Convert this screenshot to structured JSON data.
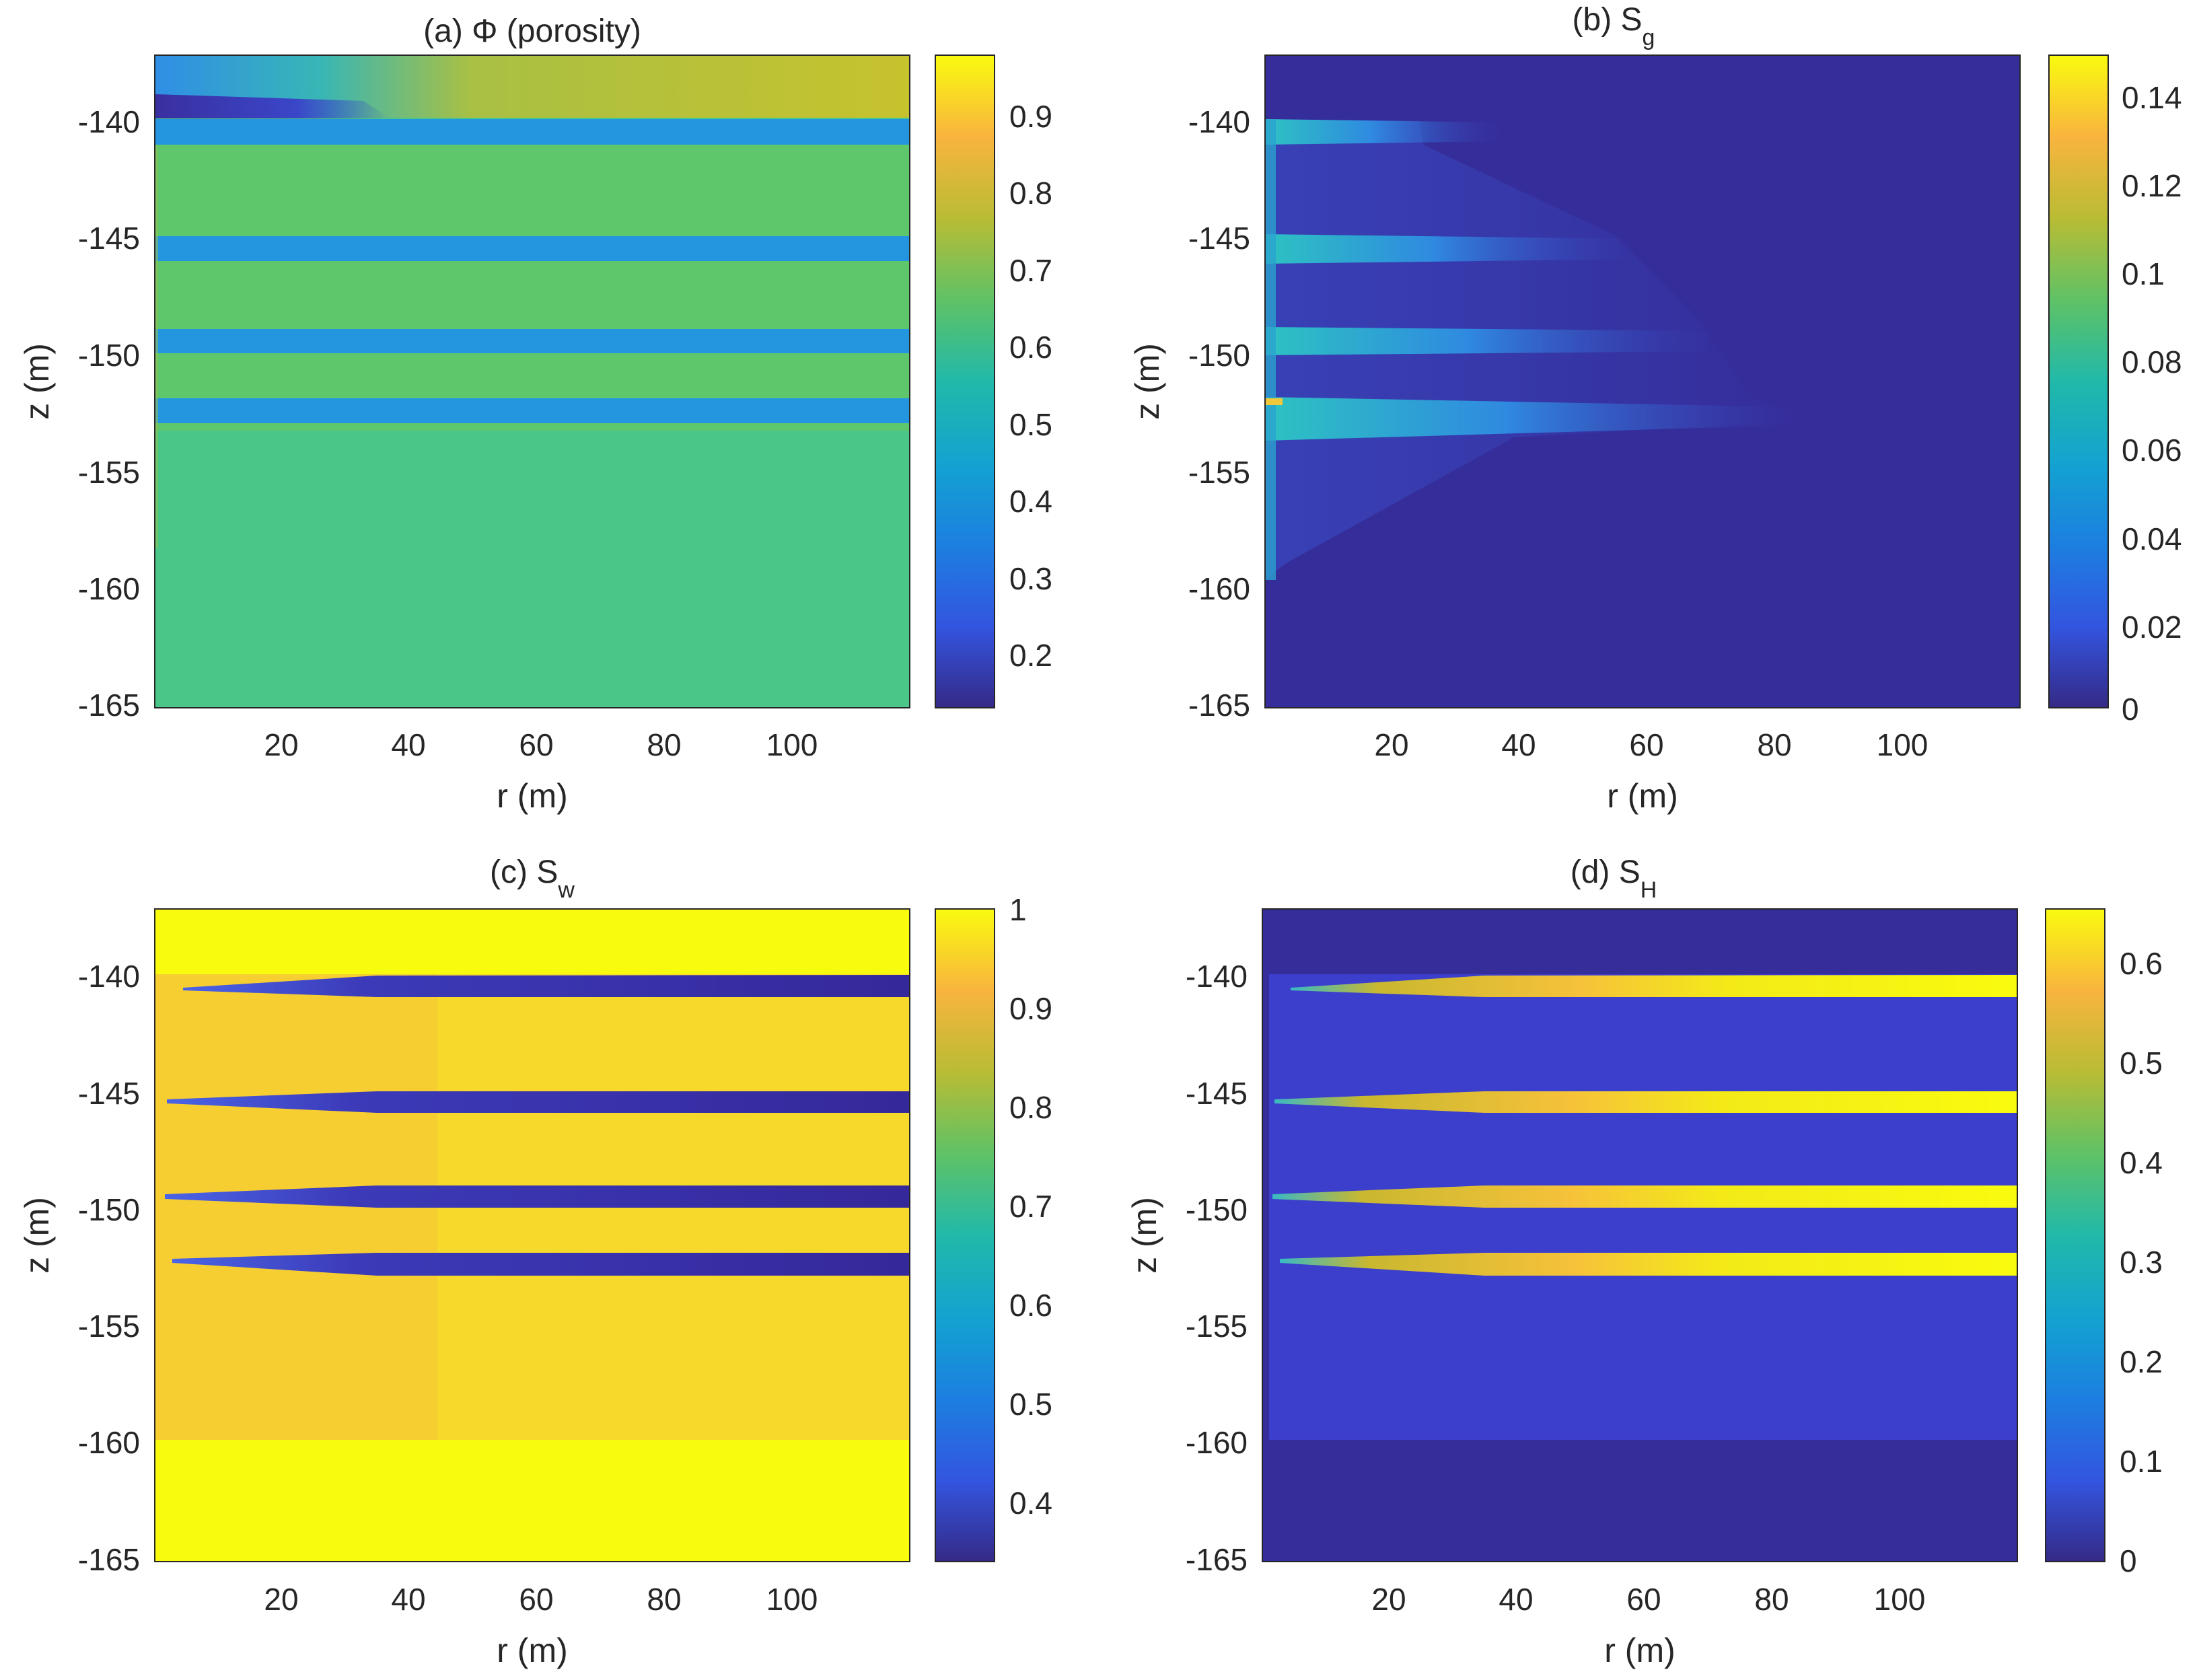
{
  "figure": {
    "panels": [
      {
        "id": "a",
        "title_main": "(a) Φ (porosity)",
        "title_sub": "",
        "xlabel": "r (m)",
        "ylabel": "z (m)",
        "xlim": [
          0,
          118
        ],
        "ylim": [
          -165,
          -137.2
        ],
        "x_ticks": [
          "20",
          "40",
          "60",
          "80",
          "100"
        ],
        "y_ticks": [
          "-140",
          "-145",
          "-150",
          "-155",
          "-160",
          "-165"
        ],
        "colorbar_ticks": [
          "0.9",
          "0.8",
          "0.7",
          "0.6",
          "0.5",
          "0.4",
          "0.3",
          "0.2"
        ]
      },
      {
        "id": "b",
        "title_main": "(b) S",
        "title_sub": "g",
        "xlabel": "r (m)",
        "ylabel": "z (m)",
        "xlim": [
          0,
          118
        ],
        "ylim": [
          -165,
          -137.2
        ],
        "x_ticks": [
          "20",
          "40",
          "60",
          "80",
          "100"
        ],
        "y_ticks": [
          "-140",
          "-145",
          "-150",
          "-155",
          "-160",
          "-165"
        ],
        "colorbar_ticks": [
          "0.14",
          "0.12",
          "0.1",
          "0.08",
          "0.06",
          "0.04",
          "0.02",
          "0"
        ]
      },
      {
        "id": "c",
        "title_main": "(c) S",
        "title_sub": "w",
        "xlabel": "r (m)",
        "ylabel": "z (m)",
        "xlim": [
          0,
          118
        ],
        "ylim": [
          -165,
          -137.2
        ],
        "x_ticks": [
          "20",
          "40",
          "60",
          "80",
          "100"
        ],
        "y_ticks": [
          "-140",
          "-145",
          "-150",
          "-155",
          "-160",
          "-165"
        ],
        "colorbar_ticks": [
          "1",
          "0.9",
          "0.8",
          "0.7",
          "0.6",
          "0.5",
          "0.4"
        ]
      },
      {
        "id": "d",
        "title_main": "(d) S",
        "title_sub": "H",
        "xlabel": "r (m)",
        "ylabel": "z (m)",
        "xlim": [
          0,
          118
        ],
        "ylim": [
          -165,
          -137.2
        ],
        "x_ticks": [
          "20",
          "40",
          "60",
          "80",
          "100"
        ],
        "y_ticks": [
          "-140",
          "-145",
          "-150",
          "-155",
          "-160",
          "-165"
        ],
        "colorbar_ticks": [
          "0.6",
          "0.5",
          "0.4",
          "0.3",
          "0.2",
          "0.1",
          "0"
        ]
      }
    ]
  },
  "chart_data": [
    {
      "type": "heatmap",
      "title": "(a) Φ (porosity)",
      "xlabel": "r (m)",
      "ylabel": "z (m)",
      "xlim": [
        0,
        118
      ],
      "ylim": [
        -165,
        -137.2
      ],
      "colorbar": {
        "min": 0.14,
        "max": 0.97,
        "ticks": [
          0.2,
          0.3,
          0.4,
          0.5,
          0.6,
          0.7,
          0.8,
          0.9
        ]
      },
      "background_value": 0.6,
      "bands": [
        {
          "z_top": -137.2,
          "z_bottom": -139.8,
          "r_start": 0,
          "value": 0.75,
          "note": "upper layer, lower porosity (~0.2) near the well"
        },
        {
          "z_top": -139.9,
          "z_bottom": -141.0,
          "r_start": 0,
          "value": 0.42
        },
        {
          "z_top": -144.9,
          "z_bottom": -145.9,
          "r_start": 0,
          "value": 0.42
        },
        {
          "z_top": -149.0,
          "z_bottom": -150.0,
          "r_start": 0,
          "value": 0.42
        },
        {
          "z_top": -151.9,
          "z_bottom": -152.9,
          "r_start": 0,
          "value": 0.42
        }
      ],
      "colormap": "parula"
    },
    {
      "type": "heatmap",
      "title": "(b) Sg",
      "xlabel": "r (m)",
      "ylabel": "z (m)",
      "xlim": [
        0,
        118
      ],
      "ylim": [
        -165,
        -137.2
      ],
      "colorbar": {
        "min": 0,
        "max": 0.148,
        "ticks": [
          0,
          0.02,
          0.04,
          0.06,
          0.08,
          0.1,
          0.12,
          0.14
        ]
      },
      "background_value": 0,
      "bands": [
        {
          "z_top": -139.9,
          "z_bottom": -141.0,
          "r_start": 0,
          "r_end": 37,
          "value": 0.05
        },
        {
          "z_top": -144.9,
          "z_bottom": -146.0,
          "r_start": 0,
          "r_end": 57,
          "value": 0.07
        },
        {
          "z_top": -149.0,
          "z_bottom": -150.1,
          "r_start": 0,
          "r_end": 70,
          "value": 0.07
        },
        {
          "z_top": -151.9,
          "z_bottom": -153.3,
          "r_start": 0,
          "r_end": 82,
          "value": 0.08
        },
        {
          "z_top": -139.9,
          "z_bottom": -160.0,
          "r_start": 0,
          "r_end": 2,
          "value": 0.06,
          "note": "gas near the well"
        }
      ],
      "colormap": "parula"
    },
    {
      "type": "heatmap",
      "title": "(c) Sw",
      "xlabel": "r (m)",
      "ylabel": "z (m)",
      "xlim": [
        0,
        118
      ],
      "ylim": [
        -165,
        -137.2
      ],
      "colorbar": {
        "min": 0.34,
        "max": 1.0,
        "ticks": [
          0.4,
          0.5,
          0.6,
          0.7,
          0.8,
          0.9,
          1
        ]
      },
      "background_value": 1.0,
      "bands": [
        {
          "z_top": -139.9,
          "z_bottom": -160.0,
          "r_start": 0,
          "value": 0.92,
          "note": "hydrate-bearing interval"
        },
        {
          "z_top": -139.9,
          "z_bottom": -141.0,
          "r_start": 5,
          "value": 0.36
        },
        {
          "z_top": -145.0,
          "z_bottom": -146.0,
          "r_start": 3,
          "value": 0.36
        },
        {
          "z_top": -149.0,
          "z_bottom": -150.0,
          "r_start": 2,
          "value": 0.36
        },
        {
          "z_top": -152.0,
          "z_bottom": -153.0,
          "r_start": 3,
          "value": 0.36
        }
      ],
      "colormap": "parula"
    },
    {
      "type": "heatmap",
      "title": "(d) SH",
      "xlabel": "r (m)",
      "ylabel": "z (m)",
      "xlim": [
        0,
        118
      ],
      "ylim": [
        -165,
        -137.2
      ],
      "colorbar": {
        "min": 0,
        "max": 0.655,
        "ticks": [
          0,
          0.1,
          0.2,
          0.3,
          0.4,
          0.5,
          0.6
        ]
      },
      "background_value": 0,
      "bands": [
        {
          "z_top": -139.9,
          "z_bottom": -160.0,
          "r_start": 1,
          "value": 0.06,
          "note": "hydrate-bearing interval"
        },
        {
          "z_top": -139.9,
          "z_bottom": -141.0,
          "r_start": 5,
          "value": 0.65
        },
        {
          "z_top": -145.0,
          "z_bottom": -146.0,
          "r_start": 3,
          "value": 0.65
        },
        {
          "z_top": -149.0,
          "z_bottom": -150.0,
          "r_start": 2,
          "value": 0.65
        },
        {
          "z_top": -152.0,
          "z_bottom": -153.0,
          "r_start": 3,
          "value": 0.65
        }
      ],
      "colormap": "parula"
    }
  ]
}
